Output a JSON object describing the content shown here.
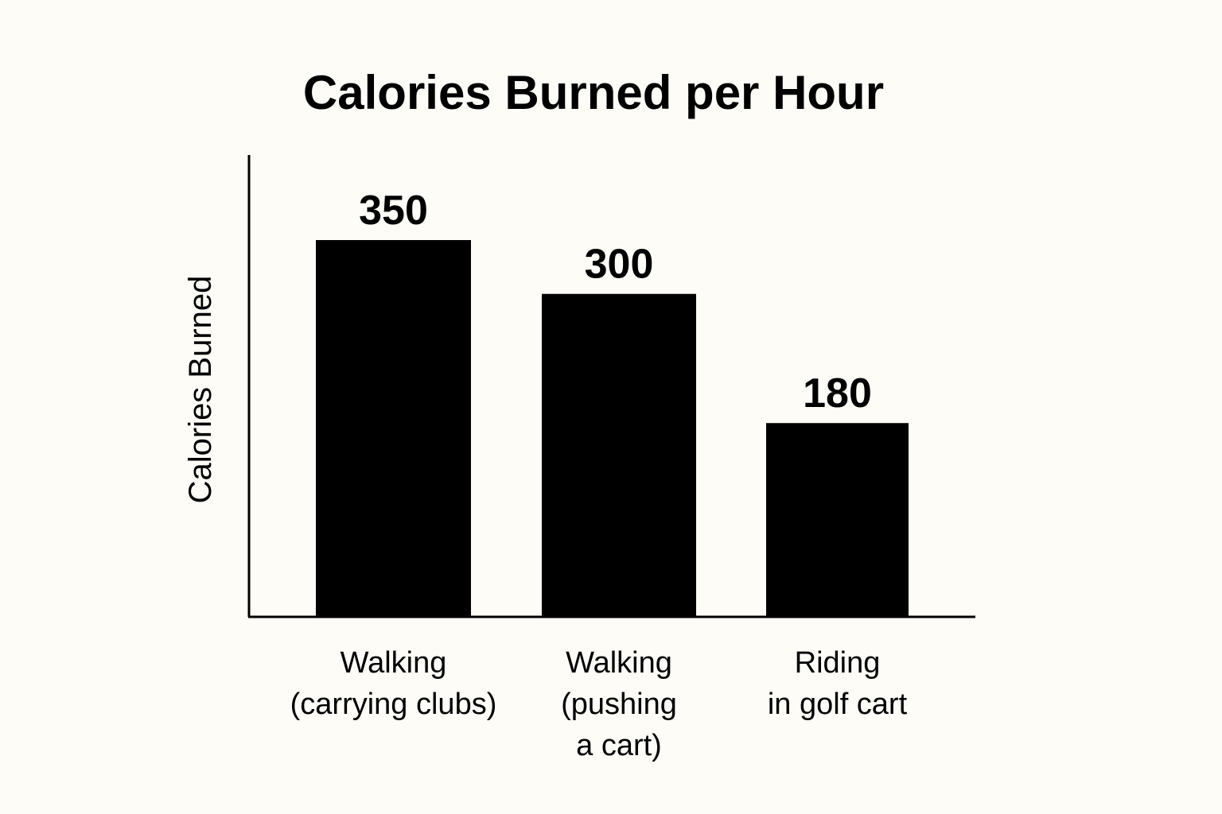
{
  "chart_data": {
    "type": "bar",
    "title": "Calories Burned per Hour",
    "xlabel": "",
    "ylabel": "Calories Burned",
    "categories": [
      [
        "Walking",
        "(carrying clubs)"
      ],
      [
        "Walking",
        "(pushing",
        "a cart)"
      ],
      [
        "Riding",
        "in golf cart"
      ]
    ],
    "values": [
      350,
      300,
      180
    ],
    "data_labels": [
      "350",
      "300",
      "180"
    ],
    "ylim": [
      0,
      380
    ],
    "grid": false,
    "legend": "none",
    "colors": {
      "bar": "#000000",
      "axis": "#000000",
      "background": "#fdfcf7"
    }
  }
}
